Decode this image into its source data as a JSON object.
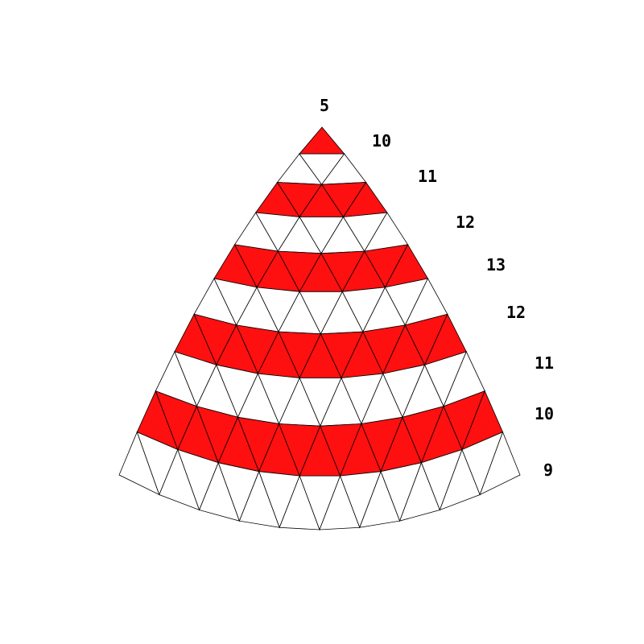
{
  "colors": {
    "band": "#ff1010",
    "plain": "#ffffff",
    "edge": "#000000"
  },
  "band_rings": [
    1,
    3,
    5,
    7,
    9
  ],
  "row_counts": [
    5,
    10,
    11,
    12,
    13,
    12,
    11,
    10,
    9
  ],
  "labels": [
    {
      "id": "top",
      "text": "5"
    },
    {
      "id": "r1",
      "text": "10"
    },
    {
      "id": "r2",
      "text": "11"
    },
    {
      "id": "r3",
      "text": "12"
    },
    {
      "id": "r4",
      "text": "13"
    },
    {
      "id": "r5",
      "text": "12"
    },
    {
      "id": "r6",
      "text": "11"
    },
    {
      "id": "r7",
      "text": "10"
    },
    {
      "id": "r8",
      "text": "9"
    }
  ]
}
